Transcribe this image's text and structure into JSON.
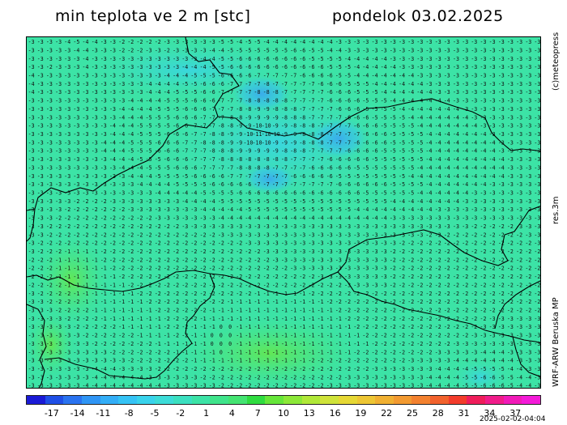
{
  "header": {
    "title": "min teplota ve 2 m [stc]",
    "date": "pondelok 03.02.2025"
  },
  "side_labels": {
    "copyright": "(c)meteopress",
    "resolution": "res.3m",
    "model": "WRF-ARW Beruska MP"
  },
  "colorbar": {
    "tick_labels": [
      "-17",
      "-14",
      "-11",
      "-8",
      "-5",
      "-2",
      "1",
      "4",
      "7",
      "10",
      "13",
      "16",
      "19",
      "22",
      "25",
      "28",
      "31",
      "34",
      "37"
    ],
    "colors": [
      "#1a1ad6",
      "#1f4fe6",
      "#2a73f0",
      "#2f95f5",
      "#33aef7",
      "#35c3f5",
      "#39d3ec",
      "#3cdcd8",
      "#3be0c0",
      "#3ce3a6",
      "#3fe48b",
      "#44e472",
      "#2fdc40",
      "#66e63a",
      "#8ce838",
      "#b0e838",
      "#cfe33a",
      "#e6d835",
      "#edc634",
      "#f0b032",
      "#f29a31",
      "#f3812f",
      "#f2622d",
      "#f33c2b",
      "#ef1d5b",
      "#f01c8a",
      "#f11ab8",
      "#f41ad8"
    ],
    "timestamp": "2025-02-02-04:04"
  },
  "legend": {
    "ticks": [
      -17,
      -14,
      -11,
      -8,
      -5,
      -2,
      1,
      4,
      7,
      10,
      13,
      16,
      19,
      22,
      25,
      28,
      31,
      34,
      37
    ]
  },
  "field": {
    "rows": [
      "-3 -3 -3 -3 -4 -5 -4 -4 -3 -3 -2 -2 -2 -2 -2 -3 -3 -3 -3 -3 -3 -5 -5 -4 -5 -5 -4 -4 -4 -4 -4 -4 -4 -4 -3 -3 -3 -3 -3 -3 -3 -3 -3 -3 -3 -3 -3 -3 -3 -3 -3 -3 -3 -3 -3 -3 -3",
      "-3 -3 -3 -3 -3 -4 -4 -3 -3 -3 -2 -2 -2 -3 -3 -2 -3 -3 -3 -3 -4 -4 -5 -5 -5 -5 -5 -5 -5 -6 -6 -5 -5 -4 -4 -3 -3 -3 -3 -3 -3 -3 -3 -3 -3 -3 -3 -3 -3 -3 -3 -3 -3 -3 -3 -3 -3",
      "-3 -3 -3 -3 -3 -3 -4 -3 -3 -3 -3 -3 -3 -3 -3 -3 -3 -3 -3 -4 -4 -5 -5 -6 -6 -6 -6 -6 -6 -6 -6 -5 -5 -5 -5 -4 -4 -4 -4 -4 -3 -3 -3 -3 -3 -3 -3 -3 -3 -3 -3 -3 -3 -3 -3 -3 -3",
      "-3 -3 -2 -3 -3 -3 -4 -3 -3 -3 -3 -3 -3 -3 -3 -3 -3 -4 -4 -4 -5 -5 -6 -6 -6 -6 -6 -6 -6 -6 -6 -6 -6 -5 -5 -5 -4 -4 -4 -4 -4 -3 -3 -3 -3 -3 -3 -3 -3 -3 -3 -3 -3 -3 -3 -3 -3",
      "-4 -3 -3 -3 -3 -3 -3 -3 -3 -3 -3 -3 -3 -3 -3 -4 -4 -4 -5 -5 -5 -6 -6 -6 -6 -7 -7 -7 -7 -7 -6 -6 -6 -6 -5 -5 -4 -4 -4 -4 -4 -4 -4 -3 -3 -3 -3 -3 -3 -3 -3 -3 -3 -3 -3 -3 -3",
      "-4 -3 -3 -3 -3 -3 -3 -3 -3 -3 -3 -3 -3 -4 -4 -4 -4 -5 -5 -6 -6 -6 -7 -7 -7 -7 -8 -7 -7 -7 -7 -7 -6 -6 -6 -5 -5 -5 -4 -4 -4 -4 -4 -4 -3 -3 -3 -3 -3 -3 -3 -3 -3 -3 -3 -3 -3",
      "-4 -3 -3 -3 -3 -3 -3 -3 -3 -3 -3 -3 -3 -4 -4 -4 -5 -5 -5 -6 -6 -7 -7 -7 -7 -8 -8 -8 -7 -7 -7 -7 -7 -6 -6 -6 -5 -5 -5 -4 -4 -4 -4 -4 -4 -3 -3 -3 -3 -3 -3 -3 -3 -3 -3 -3 -3",
      "-3 -3 -3 -3 -3 -3 -3 -3 -3 -3 -3 -4 -4 -4 -4 -5 -5 -5 -6 -6 -6 -7 -7 -7 -8 -8 -8 -8 -8 -7 -7 -7 -7 -6 -6 -6 -6 -5 -5 -5 -4 -4 -4 -4 -4 -4 -4 -3 -3 -3 -3 -3 -3 -3 -3 -3 -3",
      "-3 -3 -3 -3 -3 -3 -3 -3 -3 -3 -4 -4 -4 -4 -5 -5 -5 -6 -6 -6 -7 -7 -7 -8 -8 -9 -9 -8 -8 -8 -7 -7 -7 -7 -6 -6 -6 -5 -5 -5 -5 -4 -4 -4 -4 -4 -4 -4 -3 -3 -3 -3 -3 -3 -3 -3 -3",
      "-3 -3 -3 -3 -3 -3 -3 -3 -3 -3 -4 -4 -4 -5 -5 -5 -6 -6 -6 -7 -7 -7 -8 -8 -9 -9 -9 -9 -8 -8 -8 -7 -7 -7 -7 -6 -6 -6 -5 -5 -5 -5 -4 -4 -4 -4 -4 -4 -4 -3 -3 -3 -3 -3 -3 -3 -3",
      "-3 -3 -3 -3 -3 -3 -3 -3 -3 -4 -4 -4 -5 -5 -5 -5 -6 -6 -7 -7 -7 -8 -8 -9 -9 -10 -10 -9 -9 -8 -8 -8 -7 -7 -7 -7 -6 -6 -6 -5 -5 -5 -5 -4 -4 -4 -4 -4 -4 -4 -3 -3 -3 -3 -3 -3 -3",
      "-3 -3 -3 -3 -3 -3 -3 -3 -3 -4 -4 -4 -5 -5 -5 -6 -6 -6 -7 -7 -8 -8 -9 -9 -10 -11 -10 -10 -9 -9 -8 -8 -8 -7 -7 -7 -7 -6 -6 -6 -5 -5 -5 -5 -4 -4 -4 -4 -4 -4 -4 -3 -3 -3 -3 -3 -3",
      "-3 -3 -3 -3 -3 -3 -3 -3 -4 -4 -4 -5 -5 -5 -6 -6 -6 -7 -7 -8 -8 -8 -9 -9 -10 -10 -10 -9 -9 -9 -8 -8 -8 -7 -7 -7 -6 -6 -6 -6 -5 -5 -5 -5 -4 -4 -4 -4 -4 -4 -4 -4 -3 -3 -3 -3 -3",
      "-3 -3 -3 -3 -3 -3 -3 -3 -4 -4 -4 -5 -5 -5 -6 -6 -6 -7 -7 -7 -8 -8 -8 -9 -9 -9 -9 -9 -8 -8 -8 -7 -7 -7 -7 -6 -6 -6 -6 -5 -5 -5 -5 -5 -4 -4 -4 -4 -4 -4 -4 -4 -3 -3 -3 -3 -3",
      "-3 -3 -3 -3 -3 -3 -3 -3 -3 -4 -4 -4 -5 -5 -5 -6 -6 -6 -7 -7 -7 -8 -8 -8 -8 -8 -8 -8 -8 -7 -7 -7 -7 -6 -6 -6 -6 -6 -5 -5 -5 -5 -5 -5 -4 -4 -4 -4 -4 -4 -4 -4 -4 -3 -3 -3 -3",
      "-3 -3 -3 -3 -3 -3 -3 -3 -3 -3 -4 -4 -4 -5 -5 -5 -6 -6 -6 -7 -7 -7 -7 -8 -8 -8 -8 -7 -7 -7 -7 -6 -6 -6 -6 -6 -5 -5 -5 -5 -5 -5 -5 -4 -4 -4 -4 -4 -4 -4 -4 -4 -4 -3 -3 -3 -3",
      "-3 -3 -3 -3 -3 -3 -3 -3 -3 -3 -3 -4 -4 -4 -5 -5 -5 -5 -6 -6 -6 -6 -7 -7 -7 -7 -7 -7 -7 -6 -6 -6 -6 -6 -5 -5 -5 -5 -5 -5 -5 -5 -4 -4 -4 -4 -4 -4 -4 -4 -4 -4 -4 -3 -3 -3 -3",
      "-3 -3 -3 -3 -3 -3 -3 -3 -3 -3 -3 -3 -4 -4 -4 -4 -5 -5 -5 -5 -6 -6 -6 -6 -6 -7 -7 -7 -7 -7 -7 -7 -7 -7 -6 -6 -6 -6 -6 -6 -5 -5 -5 -5 -4 -4 -4 -4 -4 -4 -4 -3 -3 -3 -3 -3 -3",
      "-3 -3 -3 -3 -3 -3 -3 -3 -3 -3 -3 -3 -3 -3 -4 -4 -4 -4 -4 -5 -5 -5 -5 -6 -6 -6 -6 -6 -6 -6 -6 -6 -6 -6 -6 -6 -6 -5 -5 -5 -5 -5 -5 -4 -4 -4 -4 -4 -4 -3 -3 -3 -3 -3 -3 -3 -3",
      "-3 -3 -3 -3 -3 -2 -2 -2 -2 -3 -3 -3 -3 -3 -3 -3 -3 -4 -4 -4 -4 -5 -5 -5 -5 -5 -5 -5 -5 -5 -5 -5 -5 -5 -5 -5 -5 -5 -5 -5 -4 -4 -4 -4 -4 -4 -4 -4 -3 -3 -3 -3 -3 -3 -3 -3 -3",
      "-3 -3 -3 -3 -2 -2 -2 -2 -2 -2 -2 -3 -3 -3 -3 -3 -3 -3 -3 -4 -4 -4 -4 -4 -5 -5 -5 -5 -5 -5 -5 -5 -5 -5 -5 -5 -4 -4 -4 -4 -4 -4 -4 -4 -4 -3 -3 -3 -3 -3 -3 -3 -3 -3 -3 -3 -3",
      "-3 -3 -3 -2 -2 -2 -2 -2 -2 -2 -2 -2 -2 -2 -3 -3 -3 -3 -3 -3 -3 -4 -4 -4 -4 -4 -4 -4 -4 -4 -4 -4 -4 -4 -4 -4 -4 -4 -4 -4 -3 -3 -3 -3 -3 -3 -3 -3 -3 -3 -3 -3 -3 -3 -3 -3 -3",
      "-3 -3 -2 -2 -2 -2 -2 -2 -2 -2 -2 -2 -2 -2 -2 -2 -2 -3 -3 -3 -3 -3 -3 -3 -3 -3 -3 -3 -3 -3 -3 -3 -3 -3 -3 -3 -3 -3 -3 -3 -3 -3 -3 -3 -3 -3 -3 -3 -3 -2 -2 -2 -2 -2 -3 -3 -3",
      "-3 -3 -2 -2 -2 -2 -2 -2 -2 -2 -2 -2 -2 -2 -2 -2 -2 -2 -2 -2 -2 -3 -3 -3 -3 -3 -3 -3 -3 -3 -3 -3 -3 -3 -3 -3 -3 -3 -3 -3 -3 -3 -3 -3 -2 -2 -2 -2 -2 -2 -2 -2 -2 -2 -2 -3 -3",
      "-3 -2 -2 -2 -2 -2 -2 -2 -2 -2 -2 -2 -2 -2 -2 -2 -2 -2 -2 -2 -2 -2 -2 -2 -3 -3 -3 -3 -3 -3 -3 -3 -3 -3 -3 -3 -3 -3 -3 -3 -3 -2 -2 -2 -2 -2 -2 -2 -2 -2 -2 -2 -2 -2 -2 -2 -3",
      "-3 -2 -2 -2 -1 -1 -1 -1 -2 -2 -2 -2 -2 -2 -2 -2 -2 -2 -2 -2 -2 -2 -2 -2 -2 -2 -3 -3 -3 -3 -3 -3 -3 -3 -3 -3 -3 -3 -3 -3 -2 -2 -2 -2 -2 -2 -2 -2 -2 -2 -2 -2 -2 -2 -2 -2 -2",
      "-2 -2 -2 -1 -1 -1 -1 -1 -2 -2 -2 -2 -2 -2 -2 -2 -2 -2 -2 -2 -2 -2 -2 -2 -2 -2 -2 -3 -3 -3 -3 -3 -3 -3 -3 -3 -3 -3 -3 -3 -2 -2 -2 -2 -2 -2 -2 -2 -2 -2 -2 -2 -2 -2 -2 -2 -2",
      "-2 -2 -2 -1 -1 -1 -1 -1 -1 -2 -2 -2 -2 -2 -2 -2 -2 -2 -2 -2 -2 -2 -2 -2 -2 -2 -2 -2 -2 -3 -3 -3 -3 -3 -3 -3 -3 -3 -3 -3 -2 -2 -2 -2 -2 -2 -2 -2 -2 -2 -2 -2 -2 -2 -2 -2 -2",
      "-2 -2 -2 -1 -1 -1 -1 -1 -1 -1 -2 -2 -2 -2 -2 -2 -2 -2 -2 -2 -2 -2 -2 -2 -2 -2 -2 -2 -2 -2 -2 -2 -3 -3 -3 -3 -3 -3 -3 -3 -2 -2 -2 -2 -2 -2 -2 -2 -2 -2 -2 -2 -2 -2 -2 -2 -2",
      "-2 -2 -2 -2 -1 -1 -1 -1 -1 -1 -1 -2 -2 -2 -2 -2 -2 -2 -2 -2 -2 -2 -2 -2 -2 -2 -2 -2 -2 -2 -2 -2 -2 -2 -2 -3 -3 -3 -3 -3 -2 -2 -2 -2 -2 -2 -2 -2 -2 -2 -2 -2 -2 -2 -2 -2 -2",
      "-3 -2 -2 -2 -2 -1 -1 -1 -1 -1 -1 -1 -2 -2 -2 -2 -2 -2 -2 -2 -2 -2 -2 -2 -2 -1 -1 -1 -1 -1 -1 -2 -2 -2 -2 -2 -2 -2 -2 -2 -2 -2 -2 -2 -2 -2 -2 -2 -2 -2 -2 -2 -2 -2 -2 -2 -2",
      "-3 -3 -2 -2 -2 -2 -1 -1 -1 -1 -1 -1 -1 -2 -2 -2 -2 -2 -2 -2 -2 -2 -1 -1 -1 -1 -1 -1 -1 -1 -1 -1 -1 -2 -2 -2 -2 -2 -2 -2 -2 -2 -2 -2 -2 -2 -2 -2 -2 -2 -2 -2 -2 -2 -2 -2 -2",
      "-3 -3 -3 -2 -2 -2 -2 -1 -1 -1 -1 -1 -1 -1 -2 -2 -2 -2 -2 -2 -1 -1 -1 -1 -1 -1 -1 -1 -1 -1 -1 -1 -1 -1 -2 -2 -2 -2 -2 -2 -2 -2 -2 -2 -2 -2 -2 -2 -2 -2 -2 -2 -2 -2 -2 -2 -2",
      "-3 -3 -3 -3 -2 -2 -2 -2 -1 -1 -1 -1 -1 -1 -1 -2 -2 -2 -2 -1 -1 -1 -1 -1 -1 -1 -1 -1 -1 -1 -1 -1 -1 -1 -1 -2 -2 -2 -2 -2 -2 -2 -2 -2 -2 -2 -2 -2 -2 -2 -2 -3 -3 -3 -3 -3 -3",
      "-3 -3 -3 -3 -3 -2 -2 -2 -2 -2 -1 -1 -1 -1 -1 -2 -2 -2 -1 -1 -1 0 0 -1 -1 -1 -1 -1 -1 -1 -1 -1 -1 -1 -1 -1 -2 -2 -2 -2 -2 -2 -2 -2 -2 -2 -2 -2 -2 -2 -3 -3 -3 -3 -3 -3 -3",
      "-3 -3 -3 -3 -3 -3 -2 -2 -2 -2 -2 -2 -1 -1 -1 -1 -2 -2 -1 -1 0 0 0 -1 -1 -1 -1 -1 -1 -1 -1 -1 -1 -1 -1 -1 -1 -2 -2 -2 -2 -2 -2 -2 -2 -2 -2 -2 -2 -3 -3 -3 -3 -3 -3 -3 -3",
      "-3 -3 -3 -3 -3 -3 -3 -2 -2 -2 -2 -2 -2 -2 -1 -1 -1 -1 -1 -1 0 0 0 -1 -1 -1 -1 -1 -1 -1 -1 -1 -1 -1 -1 -1 -1 -1 -2 -2 -2 -2 -2 -2 -2 -2 -2 -3 -3 -3 -3 -3 -3 -3 -3 -3 -3",
      "-3 -3 -3 -3 -3 -3 -3 -3 -3 -2 -2 -2 -2 -2 -2 -2 -1 -1 -1 -1 -1 0 -1 -1 -1 -1 -1 -1 -1 -1 -1 -1 -1 -1 -1 -1 -2 -2 -2 -2 -2 -2 -2 -2 -2 -3 -3 -3 -3 -3 -4 -4 -4 -3 -3 -3 -3",
      "-3 -3 -3 -3 -3 -3 -3 -3 -3 -3 -3 -2 -2 -2 -2 -2 -2 -2 -1 -1 -1 -1 -1 -1 -1 -1 -1 -1 -1 -1 -1 -2 -2 -2 -2 -2 -2 -2 -2 -2 -2 -2 -3 -3 -3 -3 -3 -4 -4 -4 -4 -4 -4 -4 -3 -3 -3",
      "-3 -3 -3 -3 -3 -3 -3 -4 -4 -4 -3 -3 -3 -3 -2 -2 -2 -2 -2 -2 -2 -2 -2 -2 -2 -2 -2 -2 -2 -2 -2 -2 -2 -2 -2 -2 -2 -2 -3 -3 -3 -3 -3 -3 -3 -4 -4 -4 -4 -5 -5 -5 -5 -4 -4 -3 -3",
      "-3 -3 -3 -3 -3 -3 -3 -4 -4 -4 -4 -4 -4 -3 -3 -3 -3 -3 -3 -2 -2 -2 -2 -2 -2 -2 -2 -2 -2 -2 -2 -2 -2 -2 -2 -3 -3 -3 -3 -3 -3 -3 -3 -3 -4 -4 -4 -4 -5 -5 -6 -6 -5 -5 -4 -4 -3",
      "-3 -3 -3 -3 -3 -3 -4 -4 -4 -4 -4 -4 -4 -4 -4 -3 -3 -3 -3 -3 -3 -2 -2 -2 -2 -2 -2 -2 -2 -2 -2 -2 -2 -3 -3 -3 -3 -3 -3 -3 -3 -3 -3 -3 -4 -4 -4 -4 -5 -5 -6 -6 -6 -5 -4 -4 -3"
    ]
  }
}
